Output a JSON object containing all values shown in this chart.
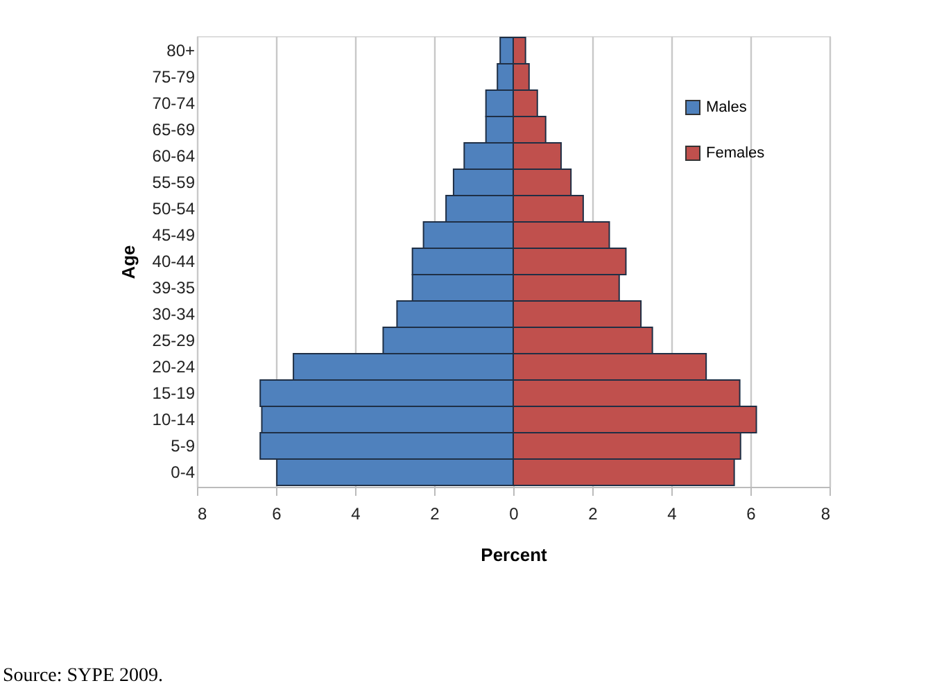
{
  "chart_data": {
    "type": "bar",
    "orientation": "horizontal",
    "stacked": true,
    "xlabel": "Percent",
    "ylabel": "Age",
    "categories": [
      "80+",
      "75-79",
      "70-74",
      "65-69",
      "60-64",
      "55-59",
      "50-54",
      "45-49",
      "40-44",
      "39-35",
      "30-34",
      "25-29",
      "20-24",
      "15-19",
      "10-14",
      "5-9",
      "0-4"
    ],
    "series": [
      {
        "name": "Males",
        "color": "#4f81bd",
        "values": [
          -0.33,
          -0.4,
          -0.69,
          -0.69,
          -1.24,
          -1.51,
          -1.7,
          -2.27,
          -2.55,
          -2.55,
          -2.94,
          -3.29,
          -5.56,
          -6.4,
          -6.36,
          -6.4,
          -5.98
        ]
      },
      {
        "name": "Females",
        "color": "#c0504d",
        "values": [
          0.31,
          0.4,
          0.61,
          0.82,
          1.21,
          1.46,
          1.77,
          2.43,
          2.85,
          2.68,
          3.23,
          3.52,
          4.88,
          5.73,
          6.15,
          5.75,
          5.59
        ]
      }
    ],
    "xlim": [
      -8,
      8
    ],
    "xticks": [
      {
        "value": -8,
        "label": "8"
      },
      {
        "value": -6,
        "label": "6"
      },
      {
        "value": -4,
        "label": "4"
      },
      {
        "value": -2,
        "label": "2"
      },
      0,
      2,
      4,
      6,
      8
    ],
    "grid": "x",
    "legend": "top right",
    "annotations": [
      "Source: SYPE 2009."
    ]
  }
}
